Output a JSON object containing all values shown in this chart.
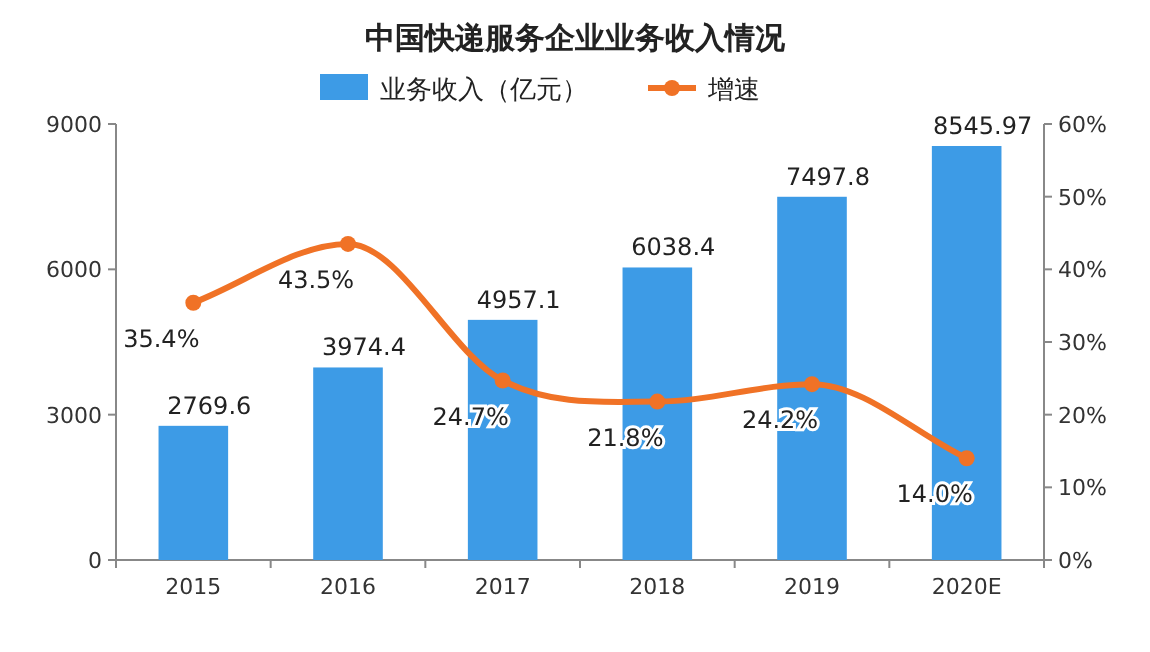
{
  "chart_data": {
    "type": "bar",
    "title": "中国快递服务企业业务收入情况",
    "categories": [
      "2015",
      "2016",
      "2017",
      "2018",
      "2019",
      "2020E"
    ],
    "series": [
      {
        "name": "业务收入（亿元）",
        "color": "#3d9be6",
        "values": [
          2769.6,
          3974.4,
          4957.1,
          6038.4,
          7497.8,
          8545.97
        ],
        "value_labels": [
          "2769.6",
          "3974.4",
          "4957.1",
          "6038.4",
          "7497.8",
          "8545.97"
        ]
      },
      {
        "name": "增速",
        "type": "line",
        "axis": "y2",
        "color": "#f07226",
        "values": [
          35.4,
          43.5,
          24.7,
          21.8,
          24.2,
          14.0
        ],
        "value_labels": [
          "35.4%",
          "43.5%",
          "24.7%",
          "21.8%",
          "24.2%",
          "14.0%"
        ]
      }
    ],
    "ylim": [
      0,
      9000
    ],
    "yticks": [
      0,
      3000,
      6000,
      9000
    ],
    "y2lim": [
      0,
      60
    ],
    "y2ticks": [
      {
        "value": 0,
        "label": "0%"
      },
      {
        "value": 10,
        "label": "10%"
      },
      {
        "value": 20,
        "label": "20%"
      },
      {
        "value": 30,
        "label": "30%"
      },
      {
        "value": 40,
        "label": "40%"
      },
      {
        "value": 50,
        "label": "50%"
      },
      {
        "value": 60,
        "label": "60%"
      }
    ],
    "legend": "top",
    "marker": "circle",
    "line_style": "solid"
  }
}
